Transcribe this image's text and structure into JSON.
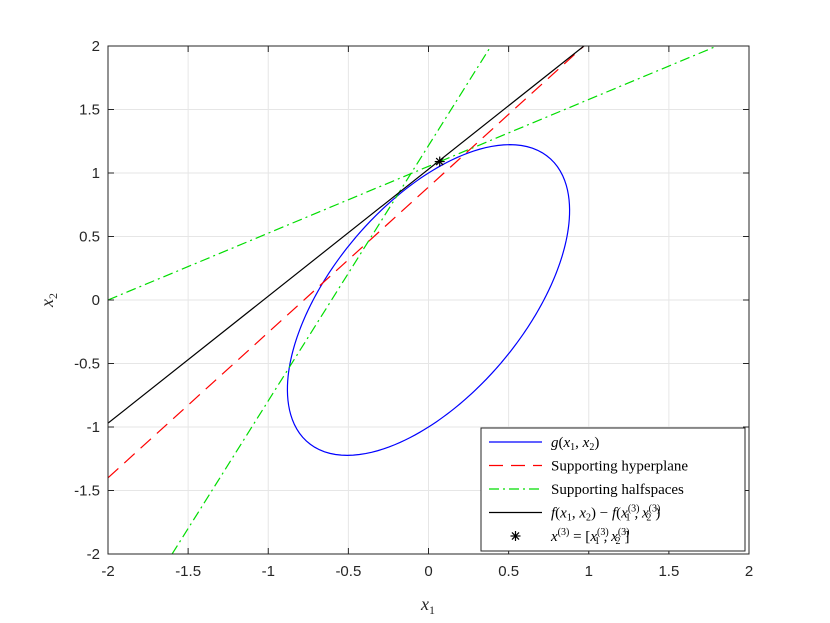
{
  "chart_data": {
    "type": "line",
    "xlabel": "x1",
    "ylabel": "x2",
    "xlim": [
      -2,
      2
    ],
    "ylim": [
      -2,
      2
    ],
    "xticks": [
      "-2",
      "-1.5",
      "-1",
      "-0.5",
      "0",
      "0.5",
      "1",
      "1.5",
      "2"
    ],
    "yticks": [
      "-2",
      "-1.5",
      "-1",
      "-0.5",
      "0",
      "0.5",
      "1",
      "1.5",
      "2"
    ],
    "grid": true,
    "legend_position": "bottom-right",
    "series": [
      {
        "name": "g(x1, x2)",
        "kind": "ellipse",
        "color": "#0000ff",
        "style": "solid",
        "center": [
          0,
          0
        ],
        "quadratic_form": [
          1.93,
          -1.6,
          1
        ]
      },
      {
        "name": "Supporting hyperplane",
        "kind": "line",
        "color": "#ff0000",
        "style": "dashed",
        "points": [
          [
            -2,
            -1.4
          ],
          [
            0.97,
            2
          ]
        ]
      },
      {
        "name": "Supporting halfspaces",
        "kind": "line",
        "color": "#00dd00",
        "style": "dashdot",
        "segments": [
          [
            [
              -2,
              0.0
            ],
            [
              1.8,
              2
            ]
          ],
          [
            [
              -1.6,
              -2
            ],
            [
              0.39,
              2
            ]
          ]
        ]
      },
      {
        "name": "f(x1,x2) − f(x1^(3), x2^(3))",
        "kind": "line",
        "color": "#000000",
        "style": "solid",
        "points": [
          [
            -2,
            -0.97
          ],
          [
            0.97,
            2
          ]
        ]
      },
      {
        "name": "x^(3) = [x1^(3), x2^(3)]",
        "kind": "marker",
        "color": "#000000",
        "marker": "asterisk",
        "points": [
          [
            0.07,
            1.09
          ]
        ]
      }
    ]
  }
}
